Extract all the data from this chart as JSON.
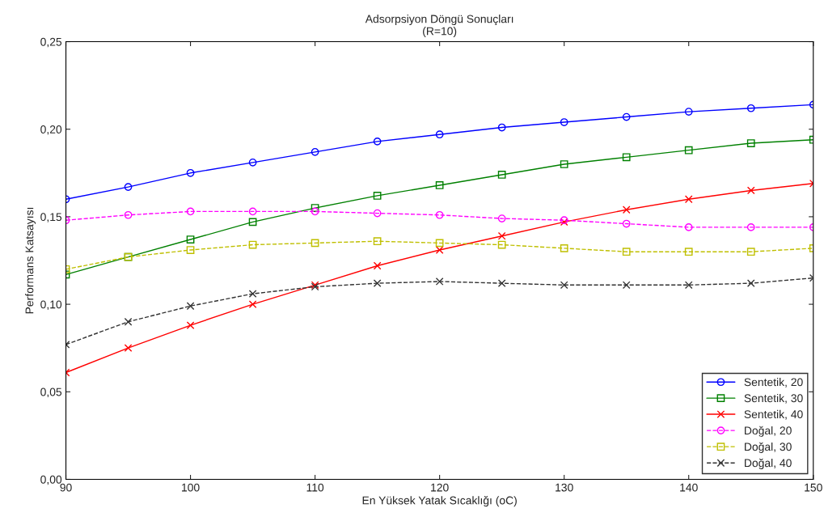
{
  "chart_data": {
    "type": "line",
    "title": "Adsorpsiyon Döngü Sonuçları",
    "subtitle": "(R=10)",
    "xlabel": "En Yüksek Yatak Sıcaklığı (oC)",
    "ylabel": "Performans Katsayısı",
    "x": [
      90,
      95,
      100,
      105,
      110,
      115,
      120,
      125,
      130,
      135,
      140,
      145,
      150
    ],
    "xlim": [
      90,
      150
    ],
    "xticks": [
      90,
      100,
      110,
      120,
      130,
      140,
      150
    ],
    "ylim": [
      0,
      0.25
    ],
    "yticks": [
      {
        "value": 0,
        "label": "0,00"
      },
      {
        "value": 0.05,
        "label": "0,05"
      },
      {
        "value": 0.1,
        "label": "0,10"
      },
      {
        "value": 0.15,
        "label": "0,15"
      },
      {
        "value": 0.2,
        "label": "0,20"
      },
      {
        "value": 0.25,
        "label": "0,25"
      }
    ],
    "grid": false,
    "legend": "bottom right",
    "series": [
      {
        "name": "Sentetik, 20",
        "color": "#0000ff",
        "marker": "circle",
        "line_style": "solid",
        "values": [
          0.16,
          0.167,
          0.175,
          0.181,
          0.187,
          0.193,
          0.197,
          0.201,
          0.204,
          0.207,
          0.21,
          0.212,
          0.214
        ]
      },
      {
        "name": "Sentetik, 30",
        "color": "#008000",
        "marker": "square",
        "line_style": "solid",
        "values": [
          0.117,
          0.127,
          0.137,
          0.147,
          0.155,
          0.162,
          0.168,
          0.174,
          0.18,
          0.184,
          0.188,
          0.192,
          0.194
        ]
      },
      {
        "name": "Sentetik, 40",
        "color": "#ff0000",
        "marker": "cross",
        "line_style": "solid",
        "values": [
          0.061,
          0.075,
          0.088,
          0.1,
          0.111,
          0.122,
          0.131,
          0.139,
          0.147,
          0.154,
          0.16,
          0.165,
          0.169
        ]
      },
      {
        "name": "Doğal, 20",
        "color": "#ff00ff",
        "marker": "circle",
        "line_style": "dashed",
        "values": [
          0.148,
          0.151,
          0.153,
          0.153,
          0.153,
          0.152,
          0.151,
          0.149,
          0.148,
          0.146,
          0.144,
          0.144,
          0.144
        ]
      },
      {
        "name": "Doğal, 30",
        "color": "#bfbf00",
        "marker": "square",
        "line_style": "dashed",
        "values": [
          0.12,
          0.127,
          0.131,
          0.134,
          0.135,
          0.136,
          0.135,
          0.134,
          0.132,
          0.13,
          0.13,
          0.13,
          0.132
        ]
      },
      {
        "name": "Doğal, 40",
        "color": "#333333",
        "marker": "cross",
        "line_style": "dashed",
        "values": [
          0.077,
          0.09,
          0.099,
          0.106,
          0.11,
          0.112,
          0.113,
          0.112,
          0.111,
          0.111,
          0.111,
          0.112,
          0.115
        ]
      }
    ]
  }
}
